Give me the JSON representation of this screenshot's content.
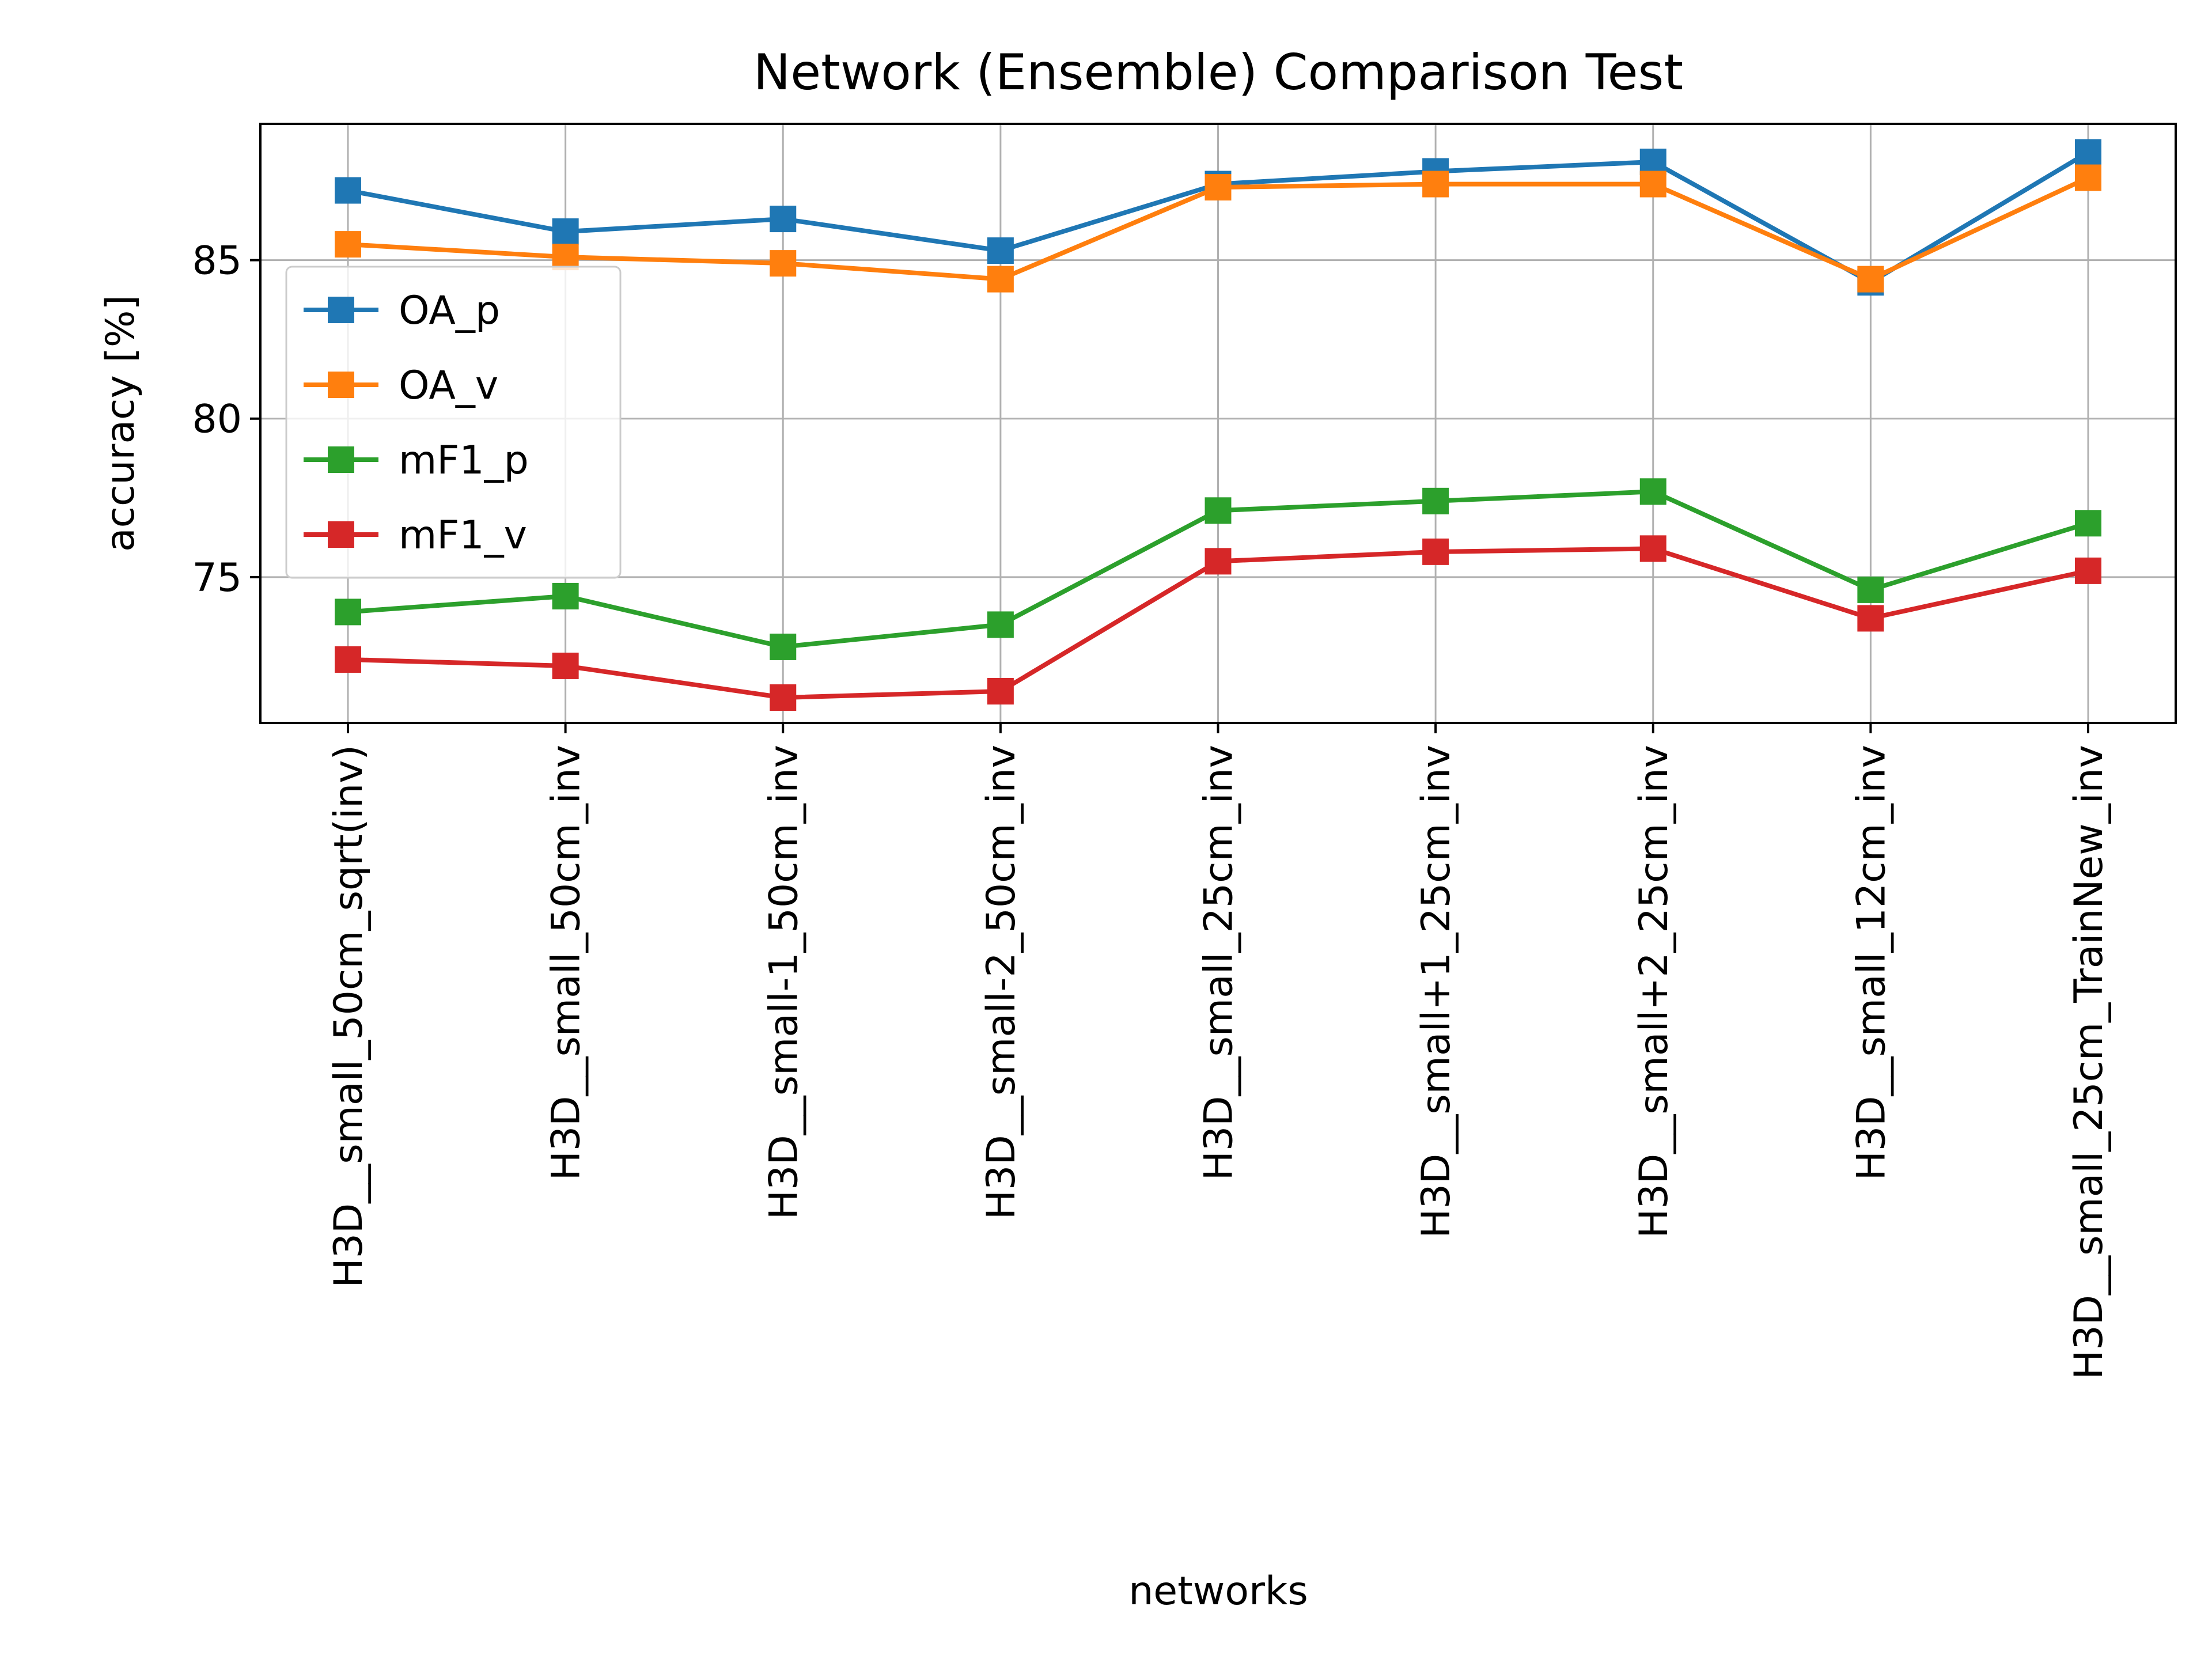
{
  "chart_data": {
    "type": "line",
    "title": "Network (Ensemble) Comparison Test",
    "xlabel": "networks",
    "ylabel": "accuracy [%]",
    "categories": [
      "H3D__small_50cm_sqrt(inv)",
      "H3D__small_50cm_inv",
      "H3D__small-1_50cm_inv",
      "H3D__small-2_50cm_inv",
      "H3D__small_25cm_inv",
      "H3D__small+1_25cm_inv",
      "H3D__small+2_25cm_inv",
      "H3D__small_12cm_inv",
      "H3D__small_25cm_TrainNew_inv"
    ],
    "ylim": [
      70.4,
      89.3
    ],
    "yticks": [
      75,
      80,
      85
    ],
    "grid": true,
    "legend_position": "left",
    "marker": "square",
    "series": [
      {
        "name": "OA_p",
        "color": "#1f77b4",
        "values": [
          87.2,
          85.9,
          86.3,
          85.3,
          87.4,
          87.8,
          88.1,
          84.3,
          88.4
        ]
      },
      {
        "name": "OA_v",
        "color": "#ff7f0e",
        "values": [
          85.5,
          85.1,
          84.9,
          84.4,
          87.3,
          87.4,
          87.4,
          84.4,
          87.6
        ]
      },
      {
        "name": "mF1_p",
        "color": "#2ca02c",
        "values": [
          73.9,
          74.4,
          72.8,
          73.5,
          77.1,
          77.4,
          77.7,
          74.6,
          76.7
        ]
      },
      {
        "name": "mF1_v",
        "color": "#d62728",
        "values": [
          72.4,
          72.2,
          71.2,
          71.4,
          75.5,
          75.8,
          75.9,
          73.7,
          75.2
        ]
      }
    ]
  }
}
